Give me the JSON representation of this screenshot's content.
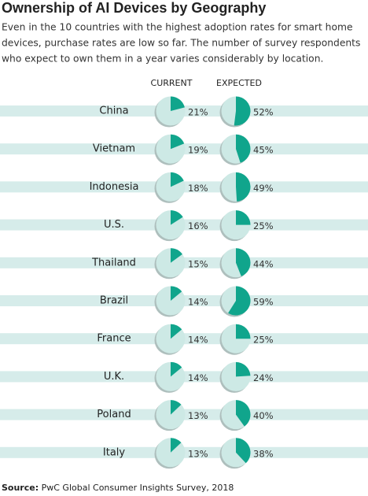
{
  "chart_data": {
    "type": "pie",
    "title": "Ownership of AI Devices by Geography",
    "subtitle": [
      "Even in the 10 countries with the highest adoption rates for smart home",
      "devices, purchase rates are low so far. The number of survey respondents",
      "who expect to own them in a year varies considerably by location."
    ],
    "categories": [
      "China",
      "Vietnam",
      "Indonesia",
      "U.S.",
      "Thailand",
      "Brazil",
      "France",
      "U.K.",
      "Poland",
      "Italy"
    ],
    "series": [
      {
        "name": "CURRENT",
        "color": "#10a58c",
        "values": [
          21,
          19,
          18,
          16,
          15,
          14,
          14,
          14,
          13,
          13
        ],
        "value_labels": [
          "21%",
          "19%",
          "18%",
          "16%",
          "15%",
          "14%",
          "14%",
          "14%",
          "13%",
          "13%"
        ]
      },
      {
        "name": "EXPECTED",
        "color": "#10a58c",
        "values": [
          52,
          45,
          49,
          25,
          44,
          59,
          25,
          24,
          40,
          38
        ],
        "value_labels": [
          "52%",
          "45%",
          "49%",
          "25%",
          "44%",
          "59%",
          "25%",
          "24%",
          "40%",
          "38%"
        ]
      }
    ],
    "source_label": "Source:",
    "source": "PwC Global Consumer Insights Survey, 2018"
  }
}
